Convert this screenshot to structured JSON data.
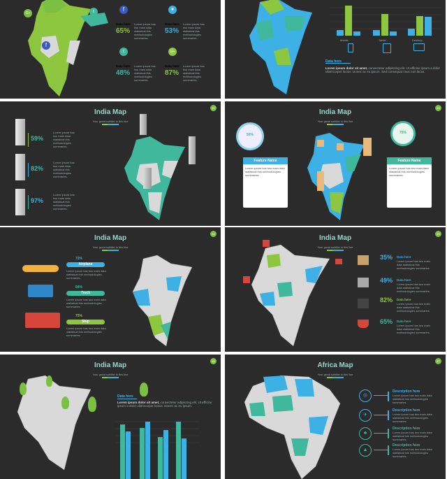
{
  "colors": {
    "bg": "#2b2b2b",
    "green": "#8dc63f",
    "teal": "#3fb89b",
    "blue": "#3db1e6",
    "gray": "#d9d9d9",
    "dkgreen": "#7bc043"
  },
  "slide1": {
    "stats": [
      {
        "label": "Data here",
        "value": "65%",
        "icon": "facebook-icon",
        "color": "#8dc63f"
      },
      {
        "label": "Data here",
        "value": "53%",
        "icon": "location-pin-icon",
        "color": "#3db1e6"
      },
      {
        "label": "Data here",
        "value": "48%",
        "icon": "twitter-icon",
        "color": "#3fb89b"
      },
      {
        "label": "Data here",
        "value": "87%",
        "icon": "google-plus-icon",
        "color": "#8dc63f"
      }
    ]
  },
  "slide2": {
    "data_label": "Data here",
    "body_bold": "Lorem ipsum dolor sit amet,",
    "body": "consectetur adipiscing elit. Ut efficitur ipsum a dolor ullamcorper luctus. Donec ac eu ipsum. Sed consequat risus non lacus.",
    "devices": [
      "Mobile",
      "Tablet",
      "Desktop"
    ]
  },
  "slide3": {
    "title": "India Map",
    "subtitle": "Your great subtitle in this line",
    "page": "42",
    "items": [
      {
        "value": "59%"
      },
      {
        "value": "82%"
      },
      {
        "value": "97%"
      }
    ]
  },
  "slide4": {
    "title": "India Map",
    "subtitle": "Your great subtitle in this line",
    "page": "43",
    "left": {
      "pct": "50%",
      "feature": "Feature Name"
    },
    "right": {
      "pct": "75%",
      "feature": "Feature Name"
    }
  },
  "slide5": {
    "title": "India Map",
    "subtitle": "Your great subtitle in this line",
    "page": "44",
    "items": [
      {
        "pct": "72%",
        "label": "Airplane",
        "color": "#3db1e6"
      },
      {
        "pct": "84%",
        "label": "Truck",
        "color": "#3fb89b"
      },
      {
        "pct": "75%",
        "label": "Ship",
        "color": "#8dc63f"
      }
    ]
  },
  "slide6": {
    "title": "India Map",
    "subtitle": "Your great subtitle in this line",
    "page": "45",
    "items": [
      {
        "pct": "35%",
        "label": "Data here",
        "color": "#3db1e6"
      },
      {
        "pct": "49%",
        "label": "Data here",
        "color": "#3db1e6"
      },
      {
        "pct": "82%",
        "label": "Data here",
        "color": "#8dc63f"
      },
      {
        "pct": "65%",
        "label": "Data here",
        "color": "#3fb89b"
      }
    ]
  },
  "slide7": {
    "title": "India Map",
    "subtitle": "Your great subtitle in this line",
    "page": "46",
    "data_label": "Data here",
    "body_bold": "Lorem ipsum dolor sit amet,",
    "body": "consectetur adipiscing elit. Ut efficitur ipsum a dolor ullamcorper luctus. Donec ac eu ipsum."
  },
  "slide8": {
    "title": "Africa Map",
    "subtitle": "Your great subtitle in this line",
    "page": "47",
    "items": [
      "Description here",
      "Description here",
      "Description here",
      "Description here"
    ]
  },
  "filler": "Lorem ipsum has two main data statistical this methodologies summaries."
}
